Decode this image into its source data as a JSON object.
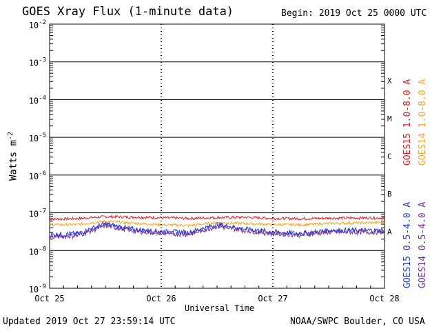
{
  "header": {
    "title": "GOES Xray Flux (1-minute data)",
    "begin": "Begin:  2019 Oct 25 0000 UTC"
  },
  "footer": {
    "updated": "Updated 2019 Oct 27 23:59:14 UTC",
    "credit": "NOAA/SWPC Boulder, CO USA"
  },
  "chart_data": {
    "type": "line",
    "title": "GOES Xray Flux (1-minute data)",
    "xlabel": "Universal Time",
    "ylabel": "Watts m",
    "ylabel_sup": "-2",
    "yscale": "log",
    "ylim": [
      1e-09,
      0.01
    ],
    "y_ticks": [
      {
        "base": "10",
        "exp": "-9",
        "value": 1e-09
      },
      {
        "base": "10",
        "exp": "-8",
        "value": 1e-08
      },
      {
        "base": "10",
        "exp": "-7",
        "value": 1e-07
      },
      {
        "base": "10",
        "exp": "-6",
        "value": 1e-06
      },
      {
        "base": "10",
        "exp": "-5",
        "value": 1e-05
      },
      {
        "base": "10",
        "exp": "-4",
        "value": 0.0001
      },
      {
        "base": "10",
        "exp": "-3",
        "value": 0.001
      },
      {
        "base": "10",
        "exp": "-2",
        "value": 0.01
      }
    ],
    "x_ticks": [
      "Oct 25",
      "Oct 26",
      "Oct 27",
      "Oct 28"
    ],
    "xlim": [
      "2019-10-25 00:00",
      "2019-10-28 00:00"
    ],
    "x_dates": [
      "2019-10-25 00:00",
      "2019-10-25 06:00",
      "2019-10-25 12:00",
      "2019-10-25 18:00",
      "2019-10-26 00:00",
      "2019-10-26 06:00",
      "2019-10-26 12:00",
      "2019-10-26 18:00",
      "2019-10-27 00:00",
      "2019-10-27 06:00",
      "2019-10-27 12:00",
      "2019-10-27 18:00",
      "2019-10-28 00:00"
    ],
    "flare_classes": [
      {
        "label": "A",
        "value": 1e-08
      },
      {
        "label": "B",
        "value": 1e-07
      },
      {
        "label": "C",
        "value": 1e-06
      },
      {
        "label": "M",
        "value": 1e-05
      },
      {
        "label": "X",
        "value": 0.0001
      }
    ],
    "grid": true,
    "legend_position": "right",
    "series": [
      {
        "name": "GOES15 1.0-8.0 A",
        "color": "#e41a1c",
        "values": [
          6.8e-08,
          7e-08,
          7.9e-08,
          7.7e-08,
          7.4e-08,
          7.1e-08,
          7.5e-08,
          7.6e-08,
          7.1e-08,
          7e-08,
          7.2e-08,
          7.3e-08,
          7.3e-08
        ]
      },
      {
        "name": "GOES14 1.0-8.0 A",
        "color": "#f5a623",
        "values": [
          4.8e-08,
          4.9e-08,
          6e-08,
          5.3e-08,
          4.8e-08,
          4.6e-08,
          5.5e-08,
          5.2e-08,
          4.9e-08,
          4.8e-08,
          5.2e-08,
          5.4e-08,
          5.5e-08
        ]
      },
      {
        "name": "GOES15 0.5-4.0 A",
        "color": "#1f3fd6",
        "values": [
          2.6e-08,
          2.8e-08,
          5.1e-08,
          3.6e-08,
          3.2e-08,
          3e-08,
          4.9e-08,
          3.7e-08,
          3.1e-08,
          2.8e-08,
          3.4e-08,
          3.4e-08,
          3.4e-08
        ]
      },
      {
        "name": "GOES14 0.5-4.0 A",
        "color": "#7030a0",
        "values": [
          2.3e-08,
          2.5e-08,
          4.6e-08,
          3.3e-08,
          2.9e-08,
          2.7e-08,
          4.4e-08,
          3.4e-08,
          2.8e-08,
          2.6e-08,
          3.1e-08,
          3.1e-08,
          3.1e-08
        ]
      }
    ]
  }
}
